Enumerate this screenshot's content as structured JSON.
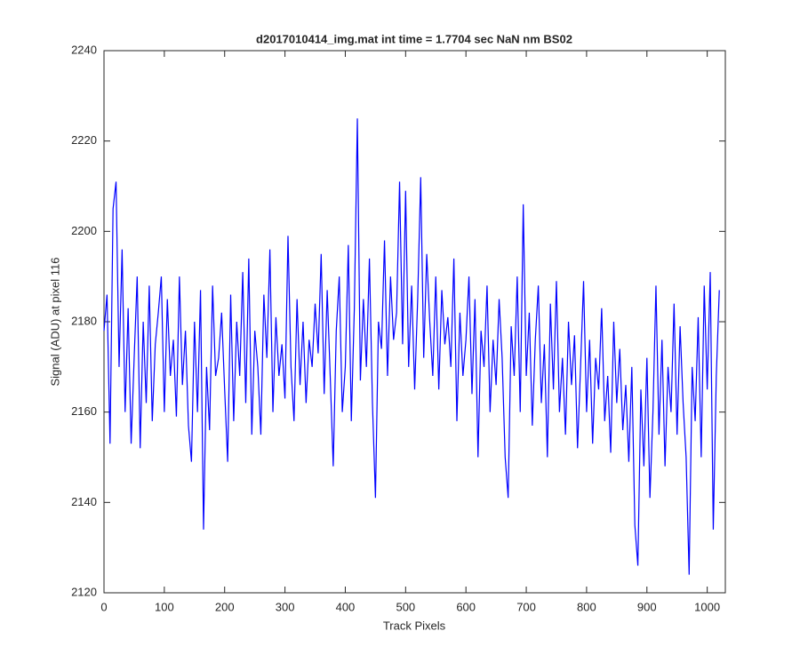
{
  "chart_data": {
    "type": "line",
    "title": "d2017010414_img.mat int time = 1.7704 sec  NaN nm BS02",
    "x_label": "Track Pixels",
    "y_label": "Signal (ADU) at pixel 116",
    "color": "#0000ff",
    "xlim": [
      0,
      1030
    ],
    "ylim": [
      2120,
      2240
    ],
    "xticks": [
      0,
      100,
      200,
      300,
      400,
      500,
      600,
      700,
      800,
      900,
      1000
    ],
    "yticks": [
      2120,
      2140,
      2160,
      2180,
      2200,
      2220,
      2240
    ],
    "x": [
      0,
      5,
      10,
      15,
      20,
      25,
      30,
      35,
      40,
      45,
      50,
      55,
      60,
      65,
      70,
      75,
      80,
      85,
      90,
      95,
      100,
      105,
      110,
      115,
      120,
      125,
      130,
      135,
      140,
      145,
      150,
      155,
      160,
      165,
      170,
      175,
      180,
      185,
      190,
      195,
      200,
      205,
      210,
      215,
      220,
      225,
      230,
      235,
      240,
      245,
      250,
      255,
      260,
      265,
      270,
      275,
      280,
      285,
      290,
      295,
      300,
      305,
      310,
      315,
      320,
      325,
      330,
      335,
      340,
      345,
      350,
      355,
      360,
      365,
      370,
      375,
      380,
      385,
      390,
      395,
      400,
      405,
      410,
      415,
      420,
      425,
      430,
      435,
      440,
      445,
      450,
      455,
      460,
      465,
      470,
      475,
      480,
      485,
      490,
      495,
      500,
      505,
      510,
      515,
      520,
      525,
      530,
      535,
      540,
      545,
      550,
      555,
      560,
      565,
      570,
      575,
      580,
      585,
      590,
      595,
      600,
      605,
      610,
      615,
      620,
      625,
      630,
      635,
      640,
      645,
      650,
      655,
      660,
      665,
      670,
      675,
      680,
      685,
      690,
      695,
      700,
      705,
      710,
      715,
      720,
      725,
      730,
      735,
      740,
      745,
      750,
      755,
      760,
      765,
      770,
      775,
      780,
      785,
      790,
      795,
      800,
      805,
      810,
      815,
      820,
      825,
      830,
      835,
      840,
      845,
      850,
      855,
      860,
      865,
      870,
      875,
      880,
      885,
      890,
      895,
      900,
      905,
      910,
      915,
      920,
      925,
      930,
      935,
      940,
      945,
      950,
      955,
      960,
      965,
      970,
      975,
      980,
      985,
      990,
      995,
      1000,
      1005,
      1010,
      1015,
      1020
    ],
    "values": [
      2178,
      2186,
      2153,
      2205,
      2211,
      2170,
      2196,
      2160,
      2183,
      2153,
      2172,
      2190,
      2152,
      2180,
      2162,
      2188,
      2158,
      2175,
      2182,
      2190,
      2160,
      2185,
      2168,
      2176,
      2159,
      2190,
      2166,
      2178,
      2157,
      2149,
      2180,
      2160,
      2187,
      2134,
      2170,
      2156,
      2188,
      2168,
      2172,
      2182,
      2165,
      2149,
      2186,
      2158,
      2180,
      2168,
      2191,
      2162,
      2194,
      2155,
      2178,
      2170,
      2155,
      2186,
      2172,
      2196,
      2160,
      2181,
      2168,
      2175,
      2163,
      2199,
      2170,
      2158,
      2185,
      2166,
      2180,
      2162,
      2176,
      2170,
      2184,
      2173,
      2195,
      2164,
      2187,
      2168,
      2148,
      2178,
      2190,
      2160,
      2170,
      2197,
      2158,
      2183,
      2225,
      2167,
      2185,
      2170,
      2194,
      2162,
      2141,
      2180,
      2174,
      2198,
      2168,
      2190,
      2176,
      2182,
      2211,
      2175,
      2209,
      2170,
      2188,
      2165,
      2185,
      2212,
      2172,
      2195,
      2180,
      2168,
      2190,
      2165,
      2187,
      2175,
      2181,
      2170,
      2194,
      2158,
      2182,
      2168,
      2176,
      2190,
      2164,
      2185,
      2150,
      2178,
      2170,
      2188,
      2160,
      2176,
      2166,
      2185,
      2172,
      2150,
      2141,
      2179,
      2168,
      2190,
      2160,
      2206,
      2168,
      2182,
      2157,
      2176,
      2188,
      2162,
      2175,
      2150,
      2184,
      2165,
      2189,
      2160,
      2172,
      2155,
      2180,
      2166,
      2177,
      2152,
      2170,
      2189,
      2160,
      2176,
      2153,
      2172,
      2165,
      2183,
      2158,
      2168,
      2151,
      2180,
      2162,
      2174,
      2156,
      2166,
      2149,
      2170,
      2135,
      2126,
      2165,
      2148,
      2172,
      2141,
      2160,
      2188,
      2155,
      2176,
      2148,
      2170,
      2160,
      2184,
      2155,
      2179,
      2162,
      2150,
      2124,
      2170,
      2158,
      2181,
      2150,
      2188,
      2165,
      2191,
      2134,
      2168,
      2187
    ]
  }
}
